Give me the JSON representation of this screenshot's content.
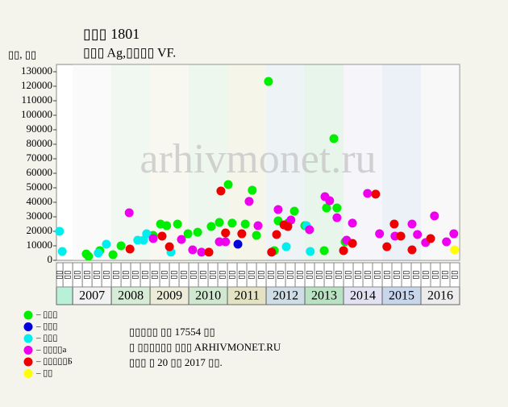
{
  "chart_data": {
    "type": "scatter",
    "title": "▯▯▯ 1801",
    "subtitle": "▯▯▯ Ag,▯▯▯▯ VF.",
    "y_label": "▯▯, ▯▯",
    "watermark": "arhivmonet.ru",
    "xlim": [
      2006.58,
      2017
    ],
    "ylim": [
      0,
      135000
    ],
    "yticks": [
      0,
      10000,
      20000,
      30000,
      40000,
      50000,
      60000,
      70000,
      80000,
      90000,
      100000,
      110000,
      120000,
      130000
    ],
    "year_labels": [
      2007,
      2008,
      2009,
      2010,
      2011,
      2012,
      2013,
      2014,
      2015,
      2016
    ],
    "year_colors": [
      "#f2f2f2",
      "#d6ecd6",
      "#ececd8",
      "#cfe8cf",
      "#e3e3c4",
      "#cfdde6",
      "#b9e2c3",
      "#e2e2f2",
      "#c8d6ec",
      "#ececec"
    ],
    "quarter_labels": [
      "▯▯",
      "▯▯",
      "▯▯",
      "▯▯",
      "▯▯",
      "▯▯",
      "▯▯",
      "▯▯",
      "▯▯",
      "▯▯",
      "▯▯",
      "▯▯",
      "▯▯",
      "▯▯",
      "▯▯",
      "▯▯",
      "▯▯",
      "▯▯",
      "▯▯",
      "▯▯",
      "▯▯",
      "▯▯",
      "▯▯",
      "▯▯",
      "▯▯",
      "▯▯",
      "▯▯",
      "▯▯",
      "▯▯",
      "▯▯",
      "▯▯",
      "▯▯",
      "▯▯",
      "▯▯",
      "▯▯",
      "▯▯",
      "▯▯",
      "▯▯",
      "▯▯",
      "▯▯",
      "▯▯",
      "▯▯"
    ],
    "series": [
      {
        "name": "– ▯▯▯",
        "color": "#00ee00",
        "x": [
          2007.35,
          2007.41,
          2007.7,
          2008.04,
          2008.25,
          2009.08,
          2009.27,
          2009.43,
          2009.71,
          2009.98,
          2010.23,
          2010.58,
          2010.79,
          2011.02,
          2011.12,
          2011.46,
          2011.64,
          2011.75,
          2012.06,
          2012.21,
          2012.31,
          2012.56,
          2012.73,
          2013.0,
          2013.5,
          2013.56,
          2013.75,
          2013.83,
          2014.04
        ],
        "values": [
          4400,
          2800,
          6700,
          3900,
          10000,
          17200,
          25000,
          23900,
          25000,
          18300,
          19400,
          23300,
          26100,
          52200,
          25600,
          25000,
          48300,
          17200,
          123300,
          6700,
          27200,
          25600,
          33900,
          23900,
          6700,
          36100,
          83900,
          36100,
          12800
        ]
      },
      {
        "name": "– ▯▯▯",
        "color": "#0000dd",
        "x": [
          2011.27
        ],
        "values": [
          11100
        ]
      },
      {
        "name": "– ▯▯▯",
        "color": "#00eeee",
        "x": [
          2006.66,
          2006.73,
          2007.66,
          2007.87,
          2008.68,
          2008.83,
          2008.91,
          2009.54,
          2012.52,
          2013.04,
          2013.14
        ],
        "values": [
          20000,
          6100,
          5000,
          11100,
          13900,
          13900,
          18300,
          5600,
          9400,
          23900,
          6100
        ]
      },
      {
        "name": "– ▯▯▯▯а",
        "color": "#ee00ee",
        "x": [
          2008.46,
          2009.08,
          2009.81,
          2010.1,
          2010.33,
          2010.79,
          2010.95,
          2011.56,
          2011.79,
          2012.31,
          2012.64,
          2013.12,
          2013.52,
          2013.64,
          2013.83,
          2014.08,
          2014.23,
          2014.62,
          2014.93,
          2015.33,
          2015.77,
          2015.91,
          2016.12,
          2016.35,
          2016.66,
          2016.85
        ],
        "values": [
          32800,
          15000,
          14400,
          7200,
          5600,
          12800,
          12800,
          40600,
          23900,
          35000,
          27800,
          21100,
          43900,
          41100,
          29400,
          13900,
          25600,
          46100,
          18300,
          16700,
          25000,
          17800,
          12200,
          30600,
          12800,
          18300
        ]
      },
      {
        "name": "– ▯▯▯▯▯Б",
        "color": "#ee0000",
        "x": [
          2008.48,
          2009.31,
          2009.5,
          2010.52,
          2010.83,
          2010.95,
          2011.37,
          2012.14,
          2012.27,
          2012.46,
          2012.56,
          2014.0,
          2014.23,
          2014.83,
          2015.12,
          2015.31,
          2015.48,
          2015.77,
          2016.25
        ],
        "values": [
          7800,
          16700,
          9400,
          5600,
          47800,
          18900,
          18300,
          5600,
          17800,
          24400,
          23300,
          6700,
          11700,
          45600,
          9400,
          25000,
          16700,
          7200,
          15000
        ]
      },
      {
        "name": "– ▯▯",
        "color": "#ffff00",
        "x": [
          2016.87
        ],
        "values": [
          7200
        ]
      }
    ],
    "footer": [
      "▯▯▯▯▯ ▯▯ 17554 ▯▯",
      "▯ ▯▯▯▯▯▯ ▯▯▯ ARHIVMONET.RU",
      "▯▯▯ ▯ 20 ▯▯ 2017 ▯▯."
    ]
  }
}
